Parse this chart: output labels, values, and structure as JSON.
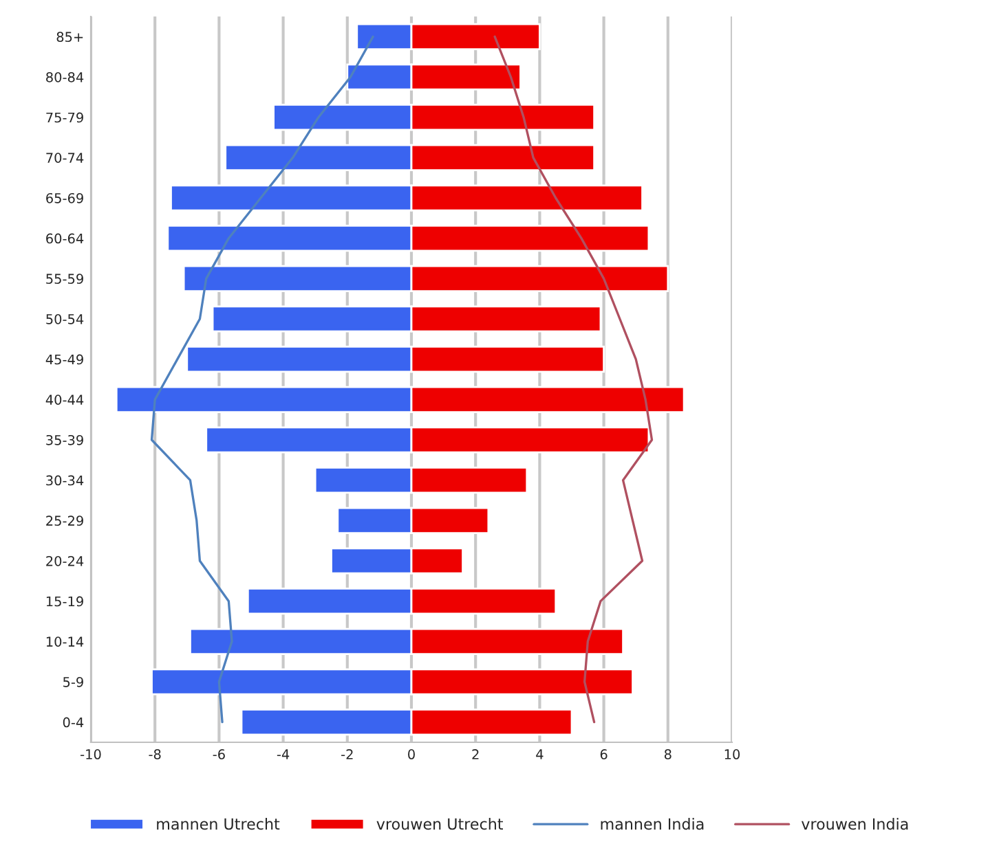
{
  "chart_data": {
    "type": "bar",
    "orientation": "horizontal",
    "categories": [
      "85+",
      "80-84",
      "75-79",
      "70-74",
      "65-69",
      "60-64",
      "55-59",
      "50-54",
      "45-49",
      "40-44",
      "35-39",
      "30-34",
      "25-29",
      "20-24",
      "15-19",
      "10-14",
      "5-9",
      "0-4"
    ],
    "series": [
      {
        "name": "mannen Utrecht",
        "color": "#3a64f0",
        "values": [
          -1.7,
          -2.0,
          -4.3,
          -5.8,
          -7.5,
          -7.6,
          -7.1,
          -6.2,
          -7.0,
          -9.2,
          -6.4,
          -3.0,
          -2.3,
          -2.5,
          -5.1,
          -6.9,
          -8.1,
          -5.3
        ]
      },
      {
        "name": "vrouwen Utrecht",
        "color": "#ee0000",
        "values": [
          4.0,
          3.4,
          5.7,
          5.7,
          7.2,
          7.4,
          8.0,
          5.9,
          6.0,
          8.5,
          7.4,
          3.6,
          2.4,
          1.6,
          4.5,
          6.6,
          6.9,
          5.0
        ]
      },
      {
        "name": "mannen India",
        "type": "line",
        "color": "#4f81bd",
        "values": [
          -1.2,
          -1.9,
          -2.9,
          -3.7,
          -4.7,
          -5.7,
          -6.4,
          -6.6,
          -7.3,
          -8.0,
          -8.1,
          -6.9,
          -6.7,
          -6.6,
          -5.7,
          -5.6,
          -6.0,
          -5.9
        ]
      },
      {
        "name": "vrouwen India",
        "type": "line",
        "color": "#b05060",
        "values": [
          2.6,
          3.1,
          3.5,
          3.8,
          4.5,
          5.3,
          6.0,
          6.5,
          7.0,
          7.3,
          7.5,
          6.6,
          6.9,
          7.2,
          5.9,
          5.5,
          5.4,
          5.7
        ]
      }
    ],
    "xlim": [
      -10,
      10
    ],
    "xticks": [
      -10,
      -8,
      -6,
      -4,
      -2,
      0,
      2,
      4,
      6,
      8,
      10
    ],
    "stacked": true,
    "grid": "x",
    "legend": "bottom"
  }
}
